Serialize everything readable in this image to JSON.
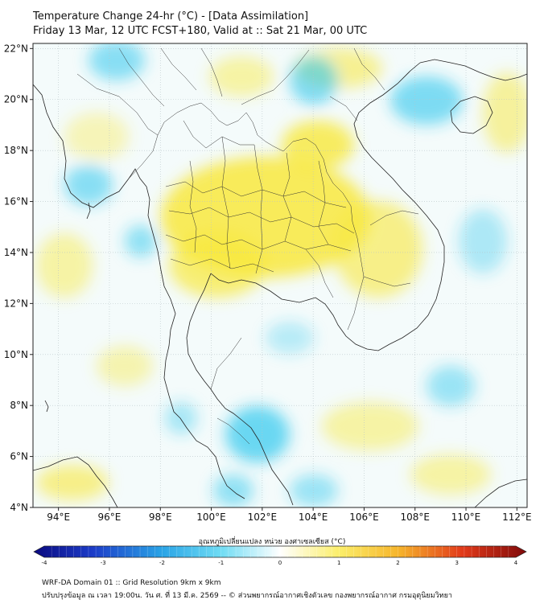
{
  "header": {
    "title_line1": "Temperature Change 24-hr (°C) - [Data Assimilation]",
    "title_line2": "Friday 13 Mar, 12 UTC FCST+180, Valid at :: Sat 21 Mar, 00 UTC"
  },
  "map": {
    "lon_range": [
      93,
      112.4
    ],
    "lat_range": [
      4,
      22.2
    ],
    "lon_ticks": [
      "94°E",
      "96°E",
      "98°E",
      "100°E",
      "102°E",
      "104°E",
      "106°E",
      "108°E",
      "110°E",
      "112°E"
    ],
    "lat_ticks": [
      "22°N",
      "20°N",
      "18°N",
      "16°N",
      "14°N",
      "12°N",
      "10°N",
      "8°N",
      "6°N",
      "4°N"
    ],
    "grid": true,
    "colors": {
      "cold": "#2ec7ee",
      "neutral": "#f4fbfb",
      "warm": "#f8e83c",
      "coast": "#222222"
    }
  },
  "colorbar": {
    "label": "อุณหภูมิเปลี่ยนแปลง หน่วย องศาเซลเซียส (°C)",
    "ticks": [
      "-4",
      "-3",
      "-2",
      "-1",
      "0",
      "1",
      "2",
      "3",
      "4"
    ],
    "range": [
      -4,
      4
    ]
  },
  "footer": {
    "line1": "WRF-DA Domain 01 :: Grid Resolution 9km x 9km",
    "line2": "ปรับปรุงข้อมูล ณ เวลา 19:00น. วัน ศ. ที่ 13 มี.ค. 2569 -- © ส่วนพยากรณ์อากาศเชิงตัวเลข กองพยากรณ์อากาศ กรมอุตุนิยมวิทยา"
  }
}
